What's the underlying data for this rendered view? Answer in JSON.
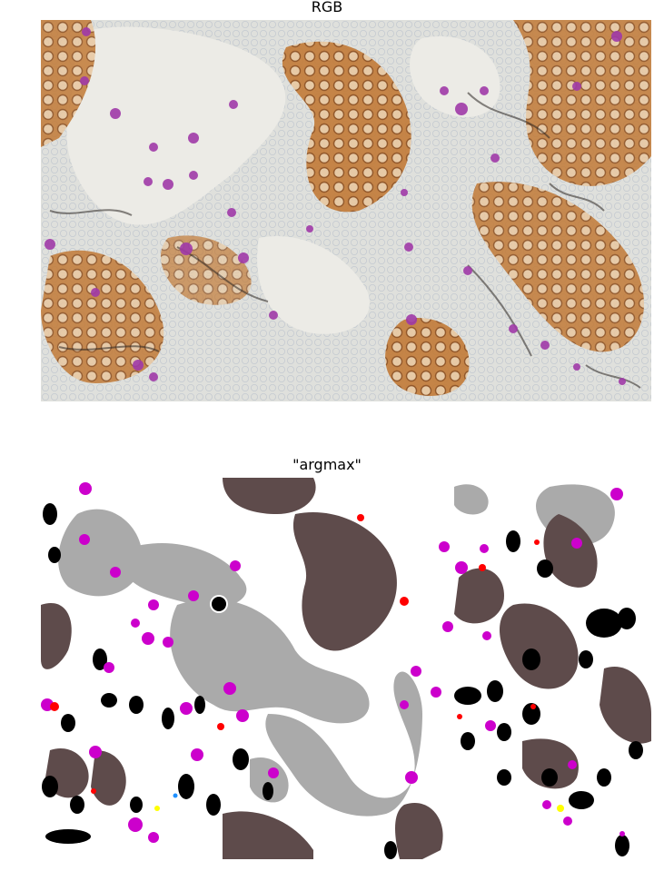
{
  "figure": {
    "top_title": "RGB",
    "bottom_title": "\"argmax\""
  },
  "colors": {
    "tissue_background": "#dfe0dc",
    "lumen": "#f2f2ef",
    "brown_membrane": "#b8702c",
    "purple_cells": "#a03aa8",
    "black_pigment": "#2a2420",
    "map_gray": "#aaaaaa",
    "map_dark_brown": "#5e4b4b",
    "map_magenta": "#cc00cc",
    "map_black": "#000000",
    "map_red": "#ff0000",
    "map_yellow": "#ffff00",
    "map_blue": "#1e90ff",
    "map_white": "#ffffff"
  }
}
